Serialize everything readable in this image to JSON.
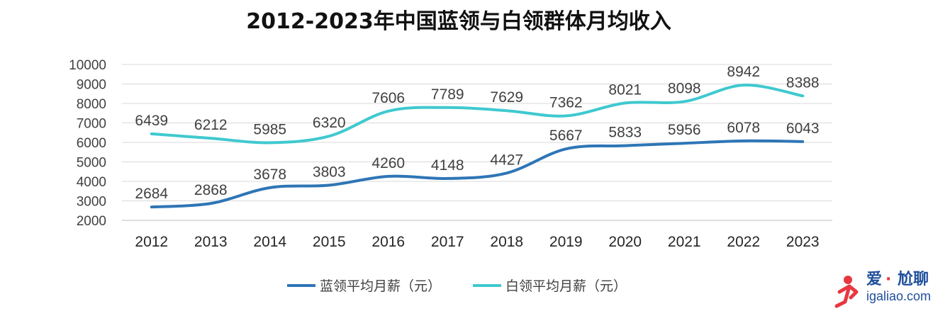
{
  "chart_data": {
    "type": "line",
    "title": "2012-2023年中国蓝领与白领群体月均收入",
    "xlabel": "",
    "ylabel": "",
    "ylim": [
      2000,
      10000
    ],
    "yticks": [
      2000,
      3000,
      4000,
      5000,
      6000,
      7000,
      8000,
      9000,
      10000
    ],
    "grid": true,
    "legend_position": "bottom-center",
    "categories": [
      "2012",
      "2013",
      "2014",
      "2015",
      "2016",
      "2017",
      "2018",
      "2019",
      "2020",
      "2021",
      "2022",
      "2023"
    ],
    "series": [
      {
        "name": "蓝领平均月薪（元）",
        "color": "#2e75b6",
        "values": [
          2684,
          2868,
          3678,
          3803,
          4260,
          4148,
          4427,
          5667,
          5833,
          5956,
          6078,
          6043
        ]
      },
      {
        "name": "白领平均月薪（元）",
        "color": "#3fc9cf",
        "values": [
          6439,
          6212,
          5985,
          6320,
          7606,
          7789,
          7629,
          7362,
          8021,
          8098,
          8942,
          8388
        ]
      }
    ]
  },
  "watermark": {
    "brand": "爱",
    "dot": "·",
    "brand2": "尬聊",
    "url": "igaliao.com",
    "logo_icon": "running-figure-icon"
  }
}
